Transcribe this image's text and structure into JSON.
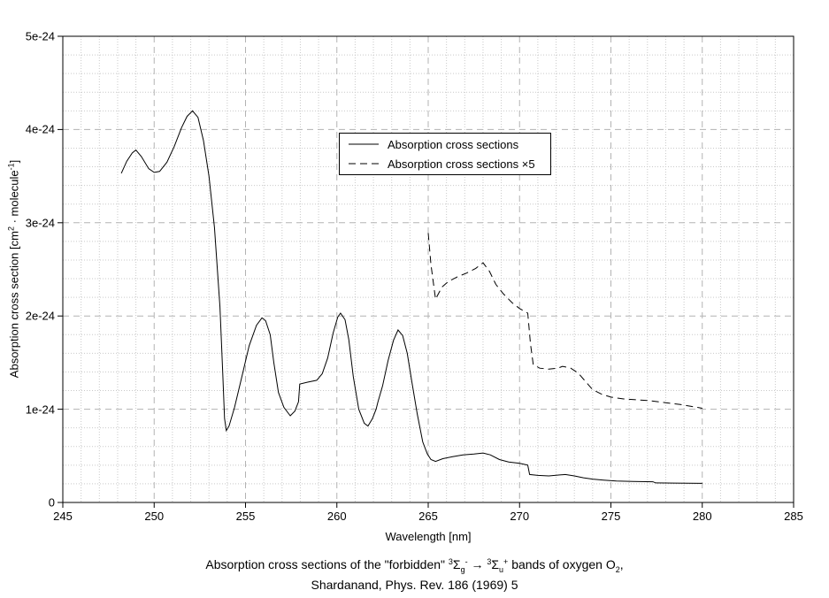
{
  "colors": {
    "background": "#ffffff",
    "text": "#000000",
    "axis": "#000000",
    "curve": "#000000",
    "grid_minor": "#c9c9c9",
    "grid_major": "#b3b3b3"
  },
  "axes": {
    "x": {
      "title": "Wavelength [nm]",
      "min": 245,
      "max": 285,
      "major_ticks": [
        245,
        250,
        255,
        260,
        265,
        270,
        275,
        280,
        285
      ],
      "minor_step": 1
    },
    "y": {
      "title_parts": {
        "pre": "Absorption cross section [cm",
        "sup1": "2",
        "mid": " · molecule",
        "sup2": "-1",
        "post": "]"
      },
      "major_tick_labels": [
        "0",
        "1e-24",
        "2e-24",
        "3e-24",
        "4e-24",
        "5e-24"
      ],
      "minor_divisions_per_major": 5
    }
  },
  "legend": {
    "entries": [
      {
        "label": "Absorption cross sections",
        "style": "solid"
      },
      {
        "label": "Absorption cross sections ×5",
        "style": "dashed"
      }
    ]
  },
  "caption": {
    "line1": {
      "t1": "Absorption cross sections of the \"forbidden\" ",
      "sup_a": "3",
      "sigma_a": "Σ",
      "sub_a": "g",
      "supm_a": "-",
      "arrow": " → ",
      "sup_b": "3",
      "sigma_b": "Σ",
      "sub_b": "u",
      "supm_b": "+",
      "t2": " bands of oxygen O",
      "sub_o": "2",
      "t3": ","
    },
    "line2": "Shardanand, Phys. Rev. 186 (1969) 5"
  },
  "chart_data": {
    "type": "line",
    "title": "Absorption cross sections of the \"forbidden\" 3Σg- → 3Σu+ bands of oxygen O2, Shardanand, Phys. Rev. 186 (1969) 5",
    "xlabel": "Wavelength [nm]",
    "ylabel": "Absorption cross section [cm2 · molecule-1]",
    "xlim": [
      245,
      285
    ],
    "ylim_e24": [
      0,
      5
    ],
    "y_tick_step_e24": 1,
    "x_minor_step": 1,
    "y_minor_step_e24": 0.2,
    "grid": "on",
    "legend_position": "upper center inside",
    "y_unit": "1e-24 cm^2 per molecule",
    "series": [
      {
        "name": "Absorption cross sections",
        "line": "solid",
        "points_e24": [
          [
            248.2,
            3.53
          ],
          [
            248.5,
            3.66
          ],
          [
            248.8,
            3.75
          ],
          [
            249.0,
            3.78
          ],
          [
            249.3,
            3.71
          ],
          [
            249.7,
            3.58
          ],
          [
            250.0,
            3.54
          ],
          [
            250.3,
            3.55
          ],
          [
            250.7,
            3.65
          ],
          [
            251.1,
            3.82
          ],
          [
            251.5,
            4.02
          ],
          [
            251.8,
            4.14
          ],
          [
            252.1,
            4.2
          ],
          [
            252.4,
            4.13
          ],
          [
            252.7,
            3.88
          ],
          [
            253.0,
            3.5
          ],
          [
            253.3,
            2.95
          ],
          [
            253.6,
            2.1
          ],
          [
            253.75,
            1.4
          ],
          [
            253.85,
            0.9
          ],
          [
            253.95,
            0.77
          ],
          [
            254.1,
            0.82
          ],
          [
            254.4,
            1.02
          ],
          [
            254.8,
            1.35
          ],
          [
            255.2,
            1.68
          ],
          [
            255.6,
            1.9
          ],
          [
            255.9,
            1.98
          ],
          [
            256.1,
            1.95
          ],
          [
            256.35,
            1.8
          ],
          [
            256.55,
            1.5
          ],
          [
            256.8,
            1.18
          ],
          [
            257.1,
            1.02
          ],
          [
            257.45,
            0.93
          ],
          [
            257.7,
            0.98
          ],
          [
            257.9,
            1.08
          ],
          [
            257.97,
            1.27
          ],
          [
            258.4,
            1.29
          ],
          [
            258.9,
            1.31
          ],
          [
            259.2,
            1.38
          ],
          [
            259.5,
            1.55
          ],
          [
            259.8,
            1.82
          ],
          [
            260.05,
            1.99
          ],
          [
            260.2,
            2.03
          ],
          [
            260.45,
            1.96
          ],
          [
            260.65,
            1.75
          ],
          [
            260.9,
            1.35
          ],
          [
            261.2,
            1.0
          ],
          [
            261.5,
            0.85
          ],
          [
            261.7,
            0.82
          ],
          [
            261.95,
            0.9
          ],
          [
            262.15,
            1.0
          ],
          [
            262.25,
            1.08
          ],
          [
            262.5,
            1.25
          ],
          [
            262.8,
            1.52
          ],
          [
            263.1,
            1.74
          ],
          [
            263.35,
            1.85
          ],
          [
            263.6,
            1.79
          ],
          [
            263.85,
            1.6
          ],
          [
            264.1,
            1.3
          ],
          [
            264.4,
            0.95
          ],
          [
            264.7,
            0.65
          ],
          [
            264.95,
            0.52
          ],
          [
            265.15,
            0.46
          ],
          [
            265.4,
            0.44
          ],
          [
            265.8,
            0.47
          ],
          [
            266.3,
            0.49
          ],
          [
            266.9,
            0.51
          ],
          [
            267.5,
            0.52
          ],
          [
            268.0,
            0.53
          ],
          [
            268.4,
            0.51
          ],
          [
            268.9,
            0.46
          ],
          [
            269.4,
            0.435
          ],
          [
            270.0,
            0.42
          ],
          [
            270.45,
            0.4
          ],
          [
            270.55,
            0.3
          ],
          [
            271.0,
            0.29
          ],
          [
            271.6,
            0.285
          ],
          [
            272.2,
            0.295
          ],
          [
            272.5,
            0.3
          ],
          [
            273.0,
            0.285
          ],
          [
            273.5,
            0.265
          ],
          [
            274.0,
            0.25
          ],
          [
            274.6,
            0.24
          ],
          [
            275.3,
            0.23
          ],
          [
            276.2,
            0.225
          ],
          [
            277.3,
            0.222
          ],
          [
            277.45,
            0.21
          ],
          [
            278.5,
            0.208
          ],
          [
            280.0,
            0.205
          ]
        ]
      },
      {
        "name": "Absorption cross sections ×5",
        "line": "dashed",
        "points_e24": [
          [
            265.0,
            2.89
          ],
          [
            265.15,
            2.55
          ],
          [
            265.4,
            2.18
          ],
          [
            265.75,
            2.31
          ],
          [
            266.1,
            2.37
          ],
          [
            266.6,
            2.42
          ],
          [
            267.1,
            2.46
          ],
          [
            267.6,
            2.51
          ],
          [
            268.0,
            2.57
          ],
          [
            268.35,
            2.48
          ],
          [
            268.7,
            2.34
          ],
          [
            269.1,
            2.24
          ],
          [
            269.6,
            2.14
          ],
          [
            270.0,
            2.08
          ],
          [
            270.45,
            2.03
          ],
          [
            270.6,
            1.7
          ],
          [
            270.75,
            1.48
          ],
          [
            271.1,
            1.44
          ],
          [
            271.6,
            1.43
          ],
          [
            272.1,
            1.44
          ],
          [
            272.35,
            1.46
          ],
          [
            272.8,
            1.44
          ],
          [
            273.2,
            1.39
          ],
          [
            273.6,
            1.3
          ],
          [
            274.0,
            1.21
          ],
          [
            274.5,
            1.16
          ],
          [
            275.0,
            1.13
          ],
          [
            275.7,
            1.11
          ],
          [
            276.5,
            1.1
          ],
          [
            277.2,
            1.09
          ],
          [
            278.0,
            1.07
          ],
          [
            278.8,
            1.05
          ],
          [
            279.4,
            1.03
          ],
          [
            280.0,
            1.01
          ]
        ]
      }
    ]
  }
}
